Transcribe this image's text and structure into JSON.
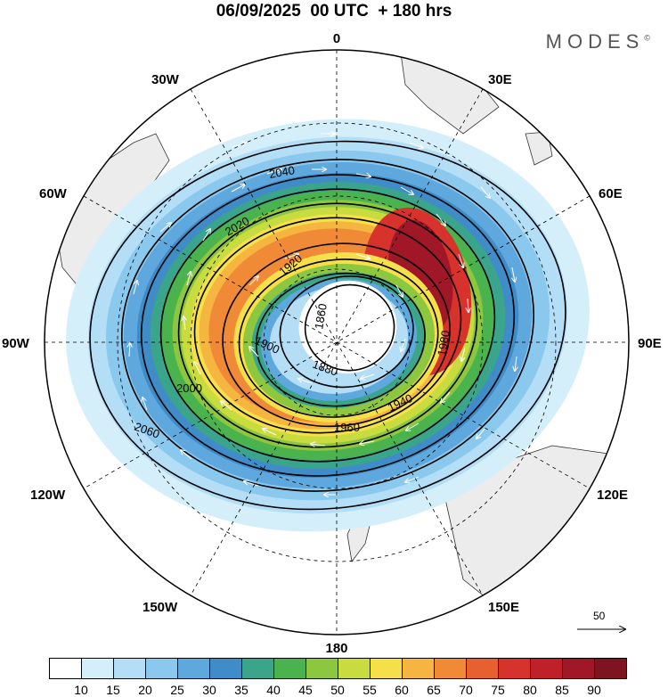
{
  "title": "06/09/2025  00 UTC  + 180 hrs",
  "brand": "MODES",
  "brand_mark": "©",
  "longitude_labels": {
    "deg0": "0",
    "deg30e": "30E",
    "deg60e": "60E",
    "deg90e": "90E",
    "deg120e": "120E",
    "deg150e": "150E",
    "deg180": "180",
    "deg150w": "150W",
    "deg120w": "120W",
    "deg90w": "90W",
    "deg60w": "60W",
    "deg30w": "30W"
  },
  "contours": [
    {
      "value": 1860,
      "label": "1860"
    },
    {
      "value": 1880,
      "label": "1880"
    },
    {
      "value": 1900,
      "label": "1900"
    },
    {
      "value": 1920,
      "label": "1920"
    },
    {
      "value": 1940,
      "label": "1940"
    },
    {
      "value": 1960,
      "label": "1960"
    },
    {
      "value": 1980,
      "label": "1980"
    },
    {
      "value": 2000,
      "label": "2000"
    },
    {
      "value": 2020,
      "label": "2020"
    },
    {
      "value": 2040,
      "label": "2040"
    },
    {
      "value": 2060,
      "label": "2060"
    }
  ],
  "reference_vector": "50",
  "colorbar": {
    "labels": [
      "10",
      "15",
      "20",
      "25",
      "30",
      "35",
      "40",
      "45",
      "50",
      "55",
      "60",
      "65",
      "70",
      "75",
      "80",
      "85",
      "90"
    ],
    "colors": [
      "#ffffff",
      "#d4eefa",
      "#b3def6",
      "#8ac8ee",
      "#5fa8de",
      "#3f8cc8",
      "#3aa58a",
      "#4bb34d",
      "#8dc63f",
      "#c8dc40",
      "#f6e04a",
      "#f6b441",
      "#f08a36",
      "#e8602f",
      "#d8322c",
      "#c0202a",
      "#a01828",
      "#7e1420"
    ]
  }
}
